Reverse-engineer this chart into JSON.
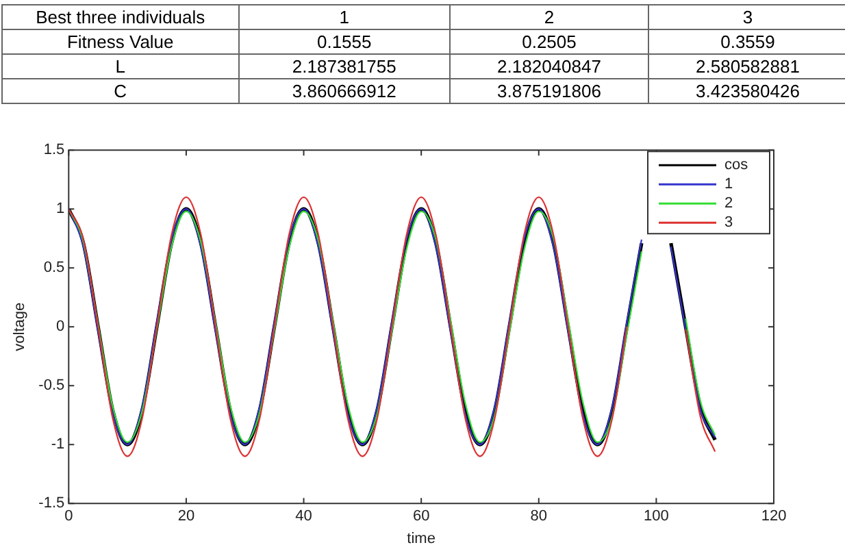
{
  "chart_data": [
    {
      "type": "other",
      "annotations": [
        "Best three individuals",
        "1",
        "2",
        "3",
        "Fitness Value",
        "0.1555",
        "0.2505",
        "0.3559",
        "L",
        "2.187381755",
        "2.182040847",
        "2.580582881",
        "C",
        "3.860666912",
        "3.875191806",
        "3.423580426"
      ]
    },
    {
      "type": "line",
      "xlabel": "time",
      "ylabel": "voltage",
      "xlim": [
        0,
        120
      ],
      "xticks": [
        0,
        20,
        40,
        60,
        80,
        100,
        120
      ],
      "ylim": [
        -1.5,
        1.5
      ],
      "yticks": [
        -1.5,
        -1,
        -0.5,
        0,
        0.5,
        1,
        1.5
      ],
      "grid": false,
      "legend": "top right",
      "marker": "none",
      "line_style": "solid",
      "x": [
        0,
        2.5,
        5,
        7.5,
        10,
        12.5,
        15,
        17.5,
        20,
        22.5,
        25,
        27.5,
        30,
        32.5,
        35,
        37.5,
        40,
        42.5,
        45,
        47.5,
        50,
        52.5,
        55,
        57.5,
        60,
        62.5,
        65,
        67.5,
        70,
        72.5,
        75,
        77.5,
        80,
        82.5,
        85,
        87.5,
        90,
        92.5,
        95,
        97.5,
        100,
        102.5,
        105,
        107.5,
        110
      ],
      "series": [
        {
          "name": "cos",
          "color": "#000000",
          "values": [
            1,
            0.71,
            0,
            -0.71,
            -1,
            -0.71,
            0,
            0.71,
            1,
            0.71,
            0,
            -0.71,
            -1,
            -0.71,
            0,
            0.71,
            1,
            0.71,
            0,
            -0.71,
            -1,
            -0.71,
            0,
            0.71,
            1,
            0.71,
            0,
            -0.71,
            -1,
            -0.71,
            0,
            0.71,
            1,
            0.71,
            0,
            -0.71,
            -1,
            -0.71,
            0,
            0.71,
            null,
            0.71,
            0,
            -0.68,
            -0.96
          ]
        },
        {
          "name": "1",
          "color": "#3333cc",
          "values": [
            1,
            0.68,
            -0.04,
            -0.74,
            -1,
            -0.68,
            0.04,
            0.74,
            1,
            0.68,
            -0.04,
            -0.74,
            -1,
            -0.68,
            0.04,
            0.74,
            1,
            0.68,
            -0.04,
            -0.74,
            -1,
            -0.68,
            0.04,
            0.74,
            1,
            0.68,
            -0.04,
            -0.74,
            -1,
            -0.68,
            0.04,
            0.74,
            1,
            0.68,
            -0.04,
            -0.74,
            -1,
            -0.68,
            0.04,
            0.74,
            null,
            0.68,
            -0.02,
            -0.7,
            -0.94
          ]
        },
        {
          "name": "2",
          "color": "#33dd33",
          "values": [
            1,
            0.72,
            0.02,
            -0.68,
            -0.98,
            -0.72,
            -0.02,
            0.68,
            0.98,
            0.72,
            0.03,
            -0.67,
            -0.98,
            -0.73,
            -0.03,
            0.67,
            0.98,
            0.73,
            0.04,
            -0.66,
            -0.98,
            -0.74,
            -0.04,
            0.66,
            0.98,
            0.74,
            0.05,
            -0.65,
            -0.98,
            -0.75,
            -0.05,
            0.65,
            0.98,
            0.75,
            0.06,
            -0.64,
            -0.98,
            -0.76,
            -0.06,
            0.64,
            null,
            null,
            0.07,
            -0.63,
            -0.92
          ]
        },
        {
          "name": "3",
          "color": "#dd3333",
          "values": [
            1,
            0.74,
            0,
            -0.78,
            -1.1,
            -0.78,
            0,
            0.78,
            1.1,
            0.78,
            0,
            -0.78,
            -1.1,
            -0.78,
            0,
            0.78,
            1.1,
            0.78,
            0,
            -0.78,
            -1.1,
            -0.78,
            0,
            0.78,
            1.1,
            0.78,
            0,
            -0.78,
            -1.1,
            -0.78,
            0,
            0.78,
            1.1,
            0.78,
            0,
            -0.78,
            -1.1,
            -0.78,
            0,
            null,
            null,
            null,
            -0.02,
            -0.76,
            -1.06
          ]
        }
      ]
    }
  ]
}
